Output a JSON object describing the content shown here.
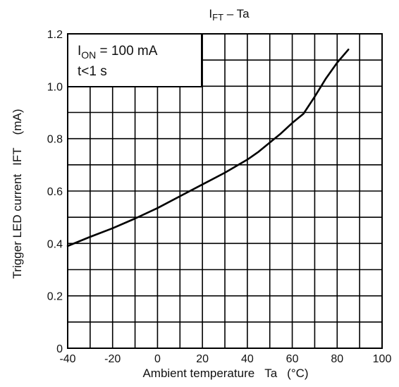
{
  "chart_data": {
    "type": "line",
    "title": "IFT – Ta",
    "title_parts": {
      "main": "I",
      "sub": "FT",
      "suffix": " – Ta"
    },
    "xlabel": "Ambient temperature Ta (°C)",
    "xlabel_parts": {
      "text": "Ambient temperature",
      "symbol": "Ta",
      "unit": "(°C)"
    },
    "ylabel": "Trigger LED current IFT (mA)",
    "ylabel_parts": {
      "text": "Trigger LED current",
      "symbol": "IFT",
      "unit": "(mA)"
    },
    "xlim": [
      -40,
      100
    ],
    "ylim": [
      0,
      1.2
    ],
    "x_ticks": [
      -40,
      -20,
      0,
      20,
      40,
      60,
      80,
      100
    ],
    "x_tick_labels": [
      "-40",
      "-20",
      "0",
      "20",
      "40",
      "60",
      "80",
      "100"
    ],
    "y_ticks": [
      0,
      0.2,
      0.4,
      0.6,
      0.8,
      1.0,
      1.2
    ],
    "y_tick_labels": [
      "0",
      "0.2",
      "0.4",
      "0.6",
      "0.8",
      "1.0",
      "1.2"
    ],
    "grid": true,
    "series": [
      {
        "x": [
          -40,
          -30,
          -20,
          -10,
          0,
          10,
          20,
          30,
          40,
          45,
          50,
          55,
          60,
          65,
          70,
          75,
          80,
          85
        ],
        "y": [
          0.39,
          0.425,
          0.458,
          0.495,
          0.535,
          0.58,
          0.625,
          0.67,
          0.72,
          0.75,
          0.785,
          0.82,
          0.86,
          0.895,
          0.96,
          1.03,
          1.09,
          1.14
        ]
      }
    ],
    "annotation": {
      "line1_parts": {
        "main": "I",
        "sub": "ON",
        "suffix": " = 100 mA"
      },
      "line2": "t<1 s"
    },
    "colors": {
      "line": "#000000",
      "grid": "#000000",
      "background": "#ffffff"
    }
  }
}
